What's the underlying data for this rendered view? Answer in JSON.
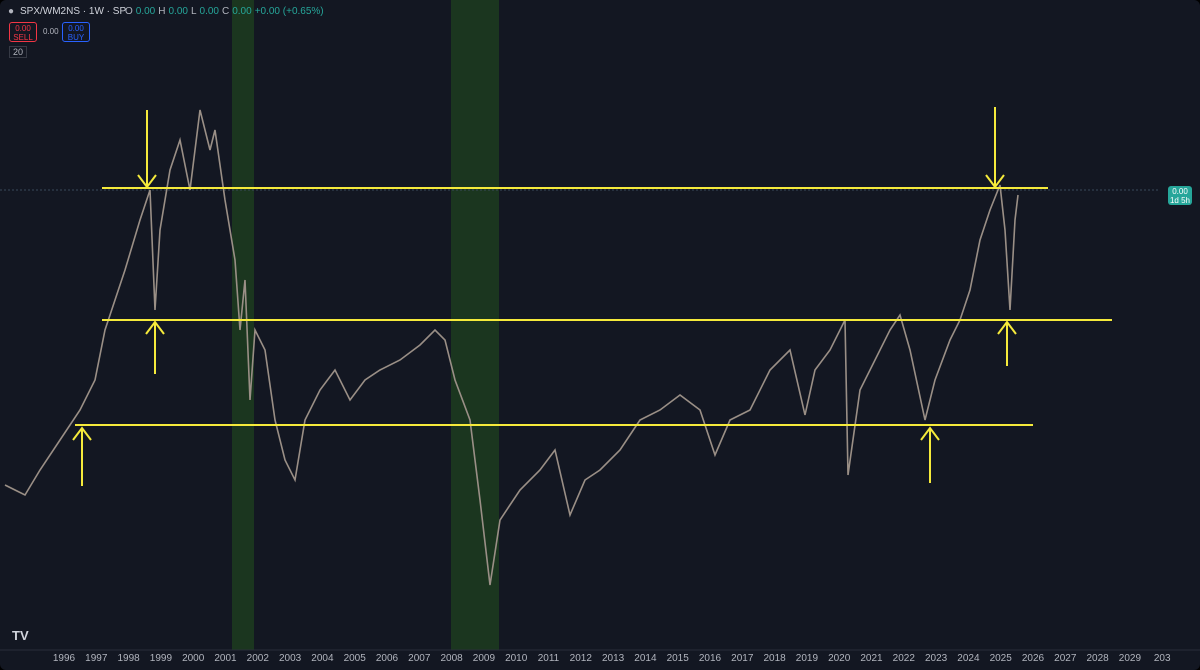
{
  "header": {
    "symbol": "SPX/WM2NS · 1W · SP",
    "ohlc": [
      {
        "label": "O",
        "value": "0.00"
      },
      {
        "label": "H",
        "value": "0.00"
      },
      {
        "label": "L",
        "value": "0.00"
      },
      {
        "label": "C",
        "value": "0.00"
      }
    ],
    "change": "+0.00 (+0.65%)"
  },
  "trade": {
    "sell_price": "0.00",
    "sell": "SELL",
    "spread": "0.00",
    "buy_price": "0.00",
    "buy": "BUY"
  },
  "indicator": "20",
  "price_tag": {
    "price": "0.00",
    "countdown": "1d 5h"
  },
  "x_axis": {
    "labels": [
      "1996",
      "1997",
      "1998",
      "1999",
      "2000",
      "2001",
      "2002",
      "2003",
      "2004",
      "2005",
      "2006",
      "2007",
      "2008",
      "2009",
      "2010",
      "2011",
      "2012",
      "2013",
      "2014",
      "2015",
      "2016",
      "2017",
      "2018",
      "2019",
      "2020",
      "2021",
      "2022",
      "2023",
      "2024",
      "2025",
      "2026",
      "2027",
      "2028",
      "2029",
      "203"
    ]
  }
}
